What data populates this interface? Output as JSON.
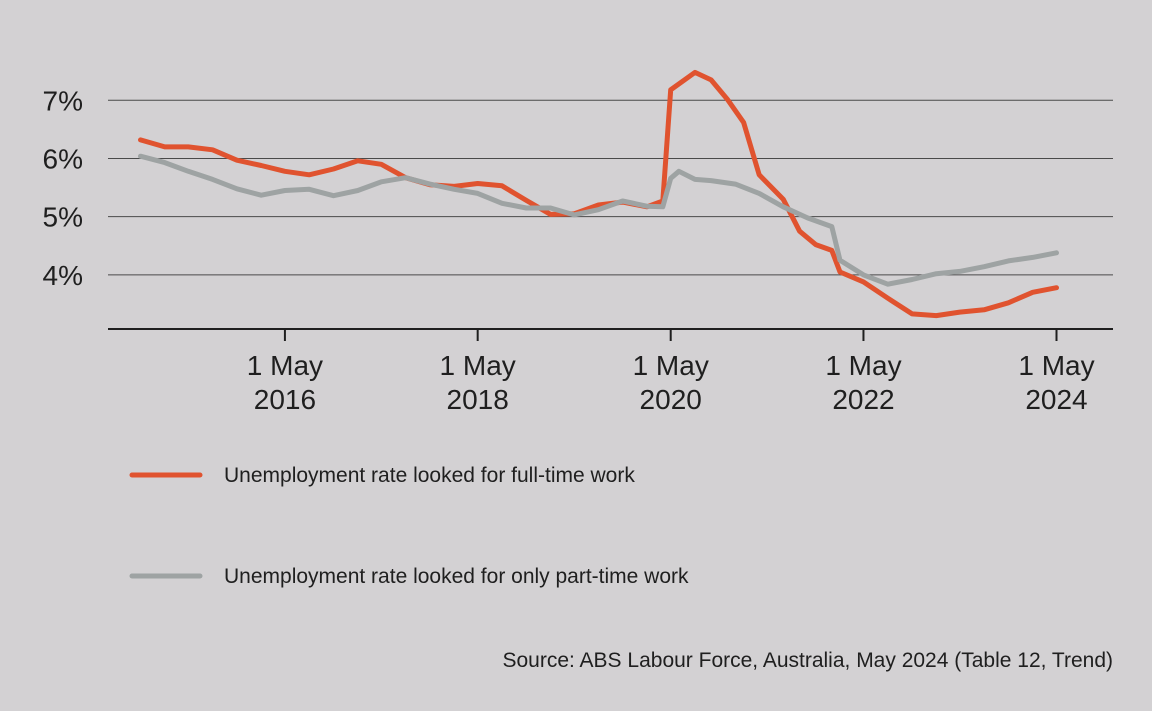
{
  "chart_data": {
    "type": "line",
    "title": "",
    "xlabel": "",
    "ylabel": "",
    "ylim": [
      3.07,
      7.83
    ],
    "y_ticks": [
      4,
      5,
      6,
      7
    ],
    "y_tick_labels": [
      "4%",
      "5%",
      "6%",
      "7%"
    ],
    "x_ticks": [
      {
        "x": "2016-05-01",
        "line1": "1 May",
        "line2": "2016"
      },
      {
        "x": "2018-05-01",
        "line1": "1 May",
        "line2": "2018"
      },
      {
        "x": "2020-05-01",
        "line1": "1 May",
        "line2": "2020"
      },
      {
        "x": "2022-05-01",
        "line1": "1 May",
        "line2": "2022"
      },
      {
        "x": "2024-05-01",
        "line1": "1 May",
        "line2": "2024"
      }
    ],
    "xlim": [
      "2014-07-01",
      "2024-12-01"
    ],
    "grid": "horizontal",
    "legend_position": "bottom",
    "series": [
      {
        "name": "Unemployment rate looked for full-time work",
        "color": "#e0532f",
        "points": [
          [
            "2014-11-01",
            6.32
          ],
          [
            "2015-02-01",
            6.2
          ],
          [
            "2015-05-01",
            6.2
          ],
          [
            "2015-08-01",
            6.15
          ],
          [
            "2015-11-01",
            5.97
          ],
          [
            "2016-02-01",
            5.88
          ],
          [
            "2016-05-01",
            5.78
          ],
          [
            "2016-08-01",
            5.72
          ],
          [
            "2016-11-01",
            5.82
          ],
          [
            "2017-02-01",
            5.96
          ],
          [
            "2017-05-01",
            5.9
          ],
          [
            "2017-08-01",
            5.67
          ],
          [
            "2017-11-01",
            5.55
          ],
          [
            "2018-02-01",
            5.52
          ],
          [
            "2018-05-01",
            5.57
          ],
          [
            "2018-08-01",
            5.53
          ],
          [
            "2018-11-01",
            5.28
          ],
          [
            "2019-02-01",
            5.04
          ],
          [
            "2019-05-01",
            5.05
          ],
          [
            "2019-08-01",
            5.2
          ],
          [
            "2019-11-01",
            5.25
          ],
          [
            "2020-02-01",
            5.17
          ],
          [
            "2020-04-01",
            5.27
          ],
          [
            "2020-05-01",
            7.18
          ],
          [
            "2020-08-01",
            7.48
          ],
          [
            "2020-10-01",
            7.35
          ],
          [
            "2020-12-01",
            7.02
          ],
          [
            "2021-02-01",
            6.62
          ],
          [
            "2021-04-01",
            5.72
          ],
          [
            "2021-07-01",
            5.3
          ],
          [
            "2021-09-01",
            4.75
          ],
          [
            "2021-11-01",
            4.52
          ],
          [
            "2022-01-01",
            4.42
          ],
          [
            "2022-02-01",
            4.05
          ],
          [
            "2022-05-01",
            3.88
          ],
          [
            "2022-08-01",
            3.6
          ],
          [
            "2022-11-01",
            3.33
          ],
          [
            "2023-02-01",
            3.3
          ],
          [
            "2023-05-01",
            3.36
          ],
          [
            "2023-08-01",
            3.4
          ],
          [
            "2023-11-01",
            3.52
          ],
          [
            "2024-02-01",
            3.7
          ],
          [
            "2024-05-01",
            3.78
          ]
        ]
      },
      {
        "name": "Unemployment rate looked for only part-time work",
        "color": "#9ea3a3",
        "points": [
          [
            "2014-11-01",
            6.04
          ],
          [
            "2015-02-01",
            5.93
          ],
          [
            "2015-05-01",
            5.78
          ],
          [
            "2015-08-01",
            5.64
          ],
          [
            "2015-11-01",
            5.48
          ],
          [
            "2016-02-01",
            5.37
          ],
          [
            "2016-05-01",
            5.45
          ],
          [
            "2016-08-01",
            5.47
          ],
          [
            "2016-11-01",
            5.36
          ],
          [
            "2017-02-01",
            5.45
          ],
          [
            "2017-05-01",
            5.6
          ],
          [
            "2017-08-01",
            5.67
          ],
          [
            "2017-11-01",
            5.56
          ],
          [
            "2018-02-01",
            5.47
          ],
          [
            "2018-05-01",
            5.4
          ],
          [
            "2018-08-01",
            5.23
          ],
          [
            "2018-11-01",
            5.15
          ],
          [
            "2019-02-01",
            5.15
          ],
          [
            "2019-05-01",
            5.03
          ],
          [
            "2019-08-01",
            5.12
          ],
          [
            "2019-11-01",
            5.27
          ],
          [
            "2020-02-01",
            5.18
          ],
          [
            "2020-04-01",
            5.17
          ],
          [
            "2020-05-01",
            5.66
          ],
          [
            "2020-06-01",
            5.78
          ],
          [
            "2020-08-01",
            5.64
          ],
          [
            "2020-10-01",
            5.62
          ],
          [
            "2021-01-01",
            5.56
          ],
          [
            "2021-04-01",
            5.4
          ],
          [
            "2021-07-01",
            5.17
          ],
          [
            "2021-10-01",
            4.98
          ],
          [
            "2022-01-01",
            4.83
          ],
          [
            "2022-02-01",
            4.25
          ],
          [
            "2022-05-01",
            4.0
          ],
          [
            "2022-08-01",
            3.84
          ],
          [
            "2022-11-01",
            3.92
          ],
          [
            "2023-02-01",
            4.02
          ],
          [
            "2023-05-01",
            4.06
          ],
          [
            "2023-08-01",
            4.14
          ],
          [
            "2023-11-01",
            4.24
          ],
          [
            "2024-02-01",
            4.3
          ],
          [
            "2024-05-01",
            4.38
          ]
        ]
      }
    ],
    "source": "Source: ABS Labour Force, Australia, May 2024 (Table 12, Trend)"
  }
}
